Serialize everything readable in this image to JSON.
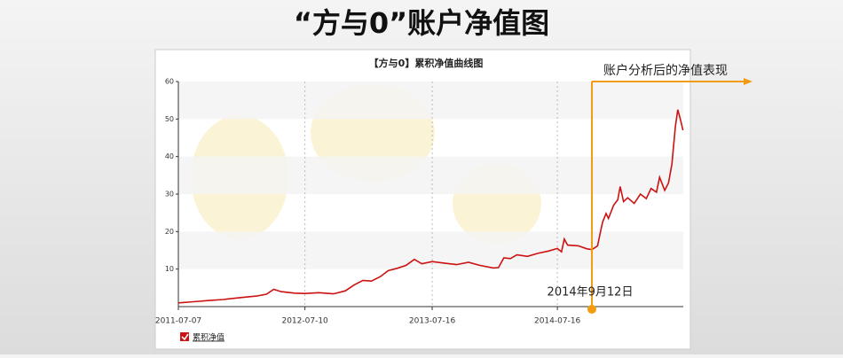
{
  "page_title": "“方与0”账户净值图",
  "chart_data": {
    "type": "line",
    "title": "【方与0】累积净值曲线图",
    "series": [
      {
        "name": "累积净值",
        "color": "#cc1111",
        "x": [
          "2011-07-07",
          "2011-08-20",
          "2011-10-01",
          "2011-11-15",
          "2012-01-05",
          "2012-02-20",
          "2012-03-20",
          "2012-04-10",
          "2012-05-01",
          "2012-06-10",
          "2012-07-10",
          "2012-08-20",
          "2012-10-01",
          "2012-11-05",
          "2012-12-01",
          "2012-12-26",
          "2013-01-20",
          "2013-02-15",
          "2013-03-10",
          "2013-04-05",
          "2013-05-01",
          "2013-05-25",
          "2013-06-16",
          "2013-07-16",
          "2013-08-20",
          "2013-09-25",
          "2013-10-30",
          "2013-12-01",
          "2014-01-10",
          "2014-01-25",
          "2014-02-10",
          "2014-03-01",
          "2014-03-20",
          "2014-04-20",
          "2014-05-20",
          "2014-06-20",
          "2014-07-16",
          "2014-07-28",
          "2014-08-05",
          "2014-08-15",
          "2014-09-15",
          "2014-10-10",
          "2014-10-25",
          "2014-11-10",
          "2014-11-20",
          "2014-11-25",
          "2014-12-05",
          "2014-12-12",
          "2014-12-27",
          "2015-01-08",
          "2015-01-15",
          "2015-01-25",
          "2015-02-06",
          "2015-02-25",
          "2015-03-15",
          "2015-04-01",
          "2015-04-15",
          "2015-05-01",
          "2015-05-10",
          "2015-05-25",
          "2015-06-05",
          "2015-06-15",
          "2015-06-25",
          "2015-07-02",
          "2015-07-08",
          "2015-07-12",
          "2015-07-17"
        ],
        "values": [
          1.0,
          1.3,
          1.6,
          1.9,
          2.4,
          2.8,
          3.3,
          4.6,
          4.0,
          3.6,
          3.5,
          3.7,
          3.4,
          4.2,
          5.8,
          7.0,
          6.8,
          8.0,
          9.6,
          10.2,
          11.0,
          12.6,
          11.4,
          12.0,
          11.6,
          11.2,
          11.8,
          11.0,
          10.3,
          10.4,
          13.0,
          12.8,
          13.8,
          13.4,
          14.2,
          14.8,
          15.5,
          14.6,
          18.0,
          16.4,
          16.2,
          15.4,
          15.2,
          16.2,
          20.5,
          22.6,
          24.8,
          23.5,
          27.0,
          28.5,
          32.0,
          28.0,
          29.0,
          27.5,
          30.0,
          28.8,
          31.5,
          30.5,
          34.5,
          31.0,
          33.0,
          38.0,
          48.0,
          52.5,
          50.5,
          49.0,
          47.0
        ]
      }
    ],
    "xlim": [
      "2011-07-07",
      "2015-07-18"
    ],
    "xticks": [
      "2011-07-07",
      "2012-07-10",
      "2013-07-16",
      "2014-07-16"
    ],
    "ylim": [
      0,
      60
    ],
    "yticks": [
      10,
      20,
      30,
      40,
      50,
      60
    ],
    "grid": true,
    "annotations": [
      {
        "text": "账户分析后的净值表现",
        "color": "#f39c12"
      },
      {
        "text": "2014年9月12日",
        "color": "#f39c12"
      }
    ]
  }
}
